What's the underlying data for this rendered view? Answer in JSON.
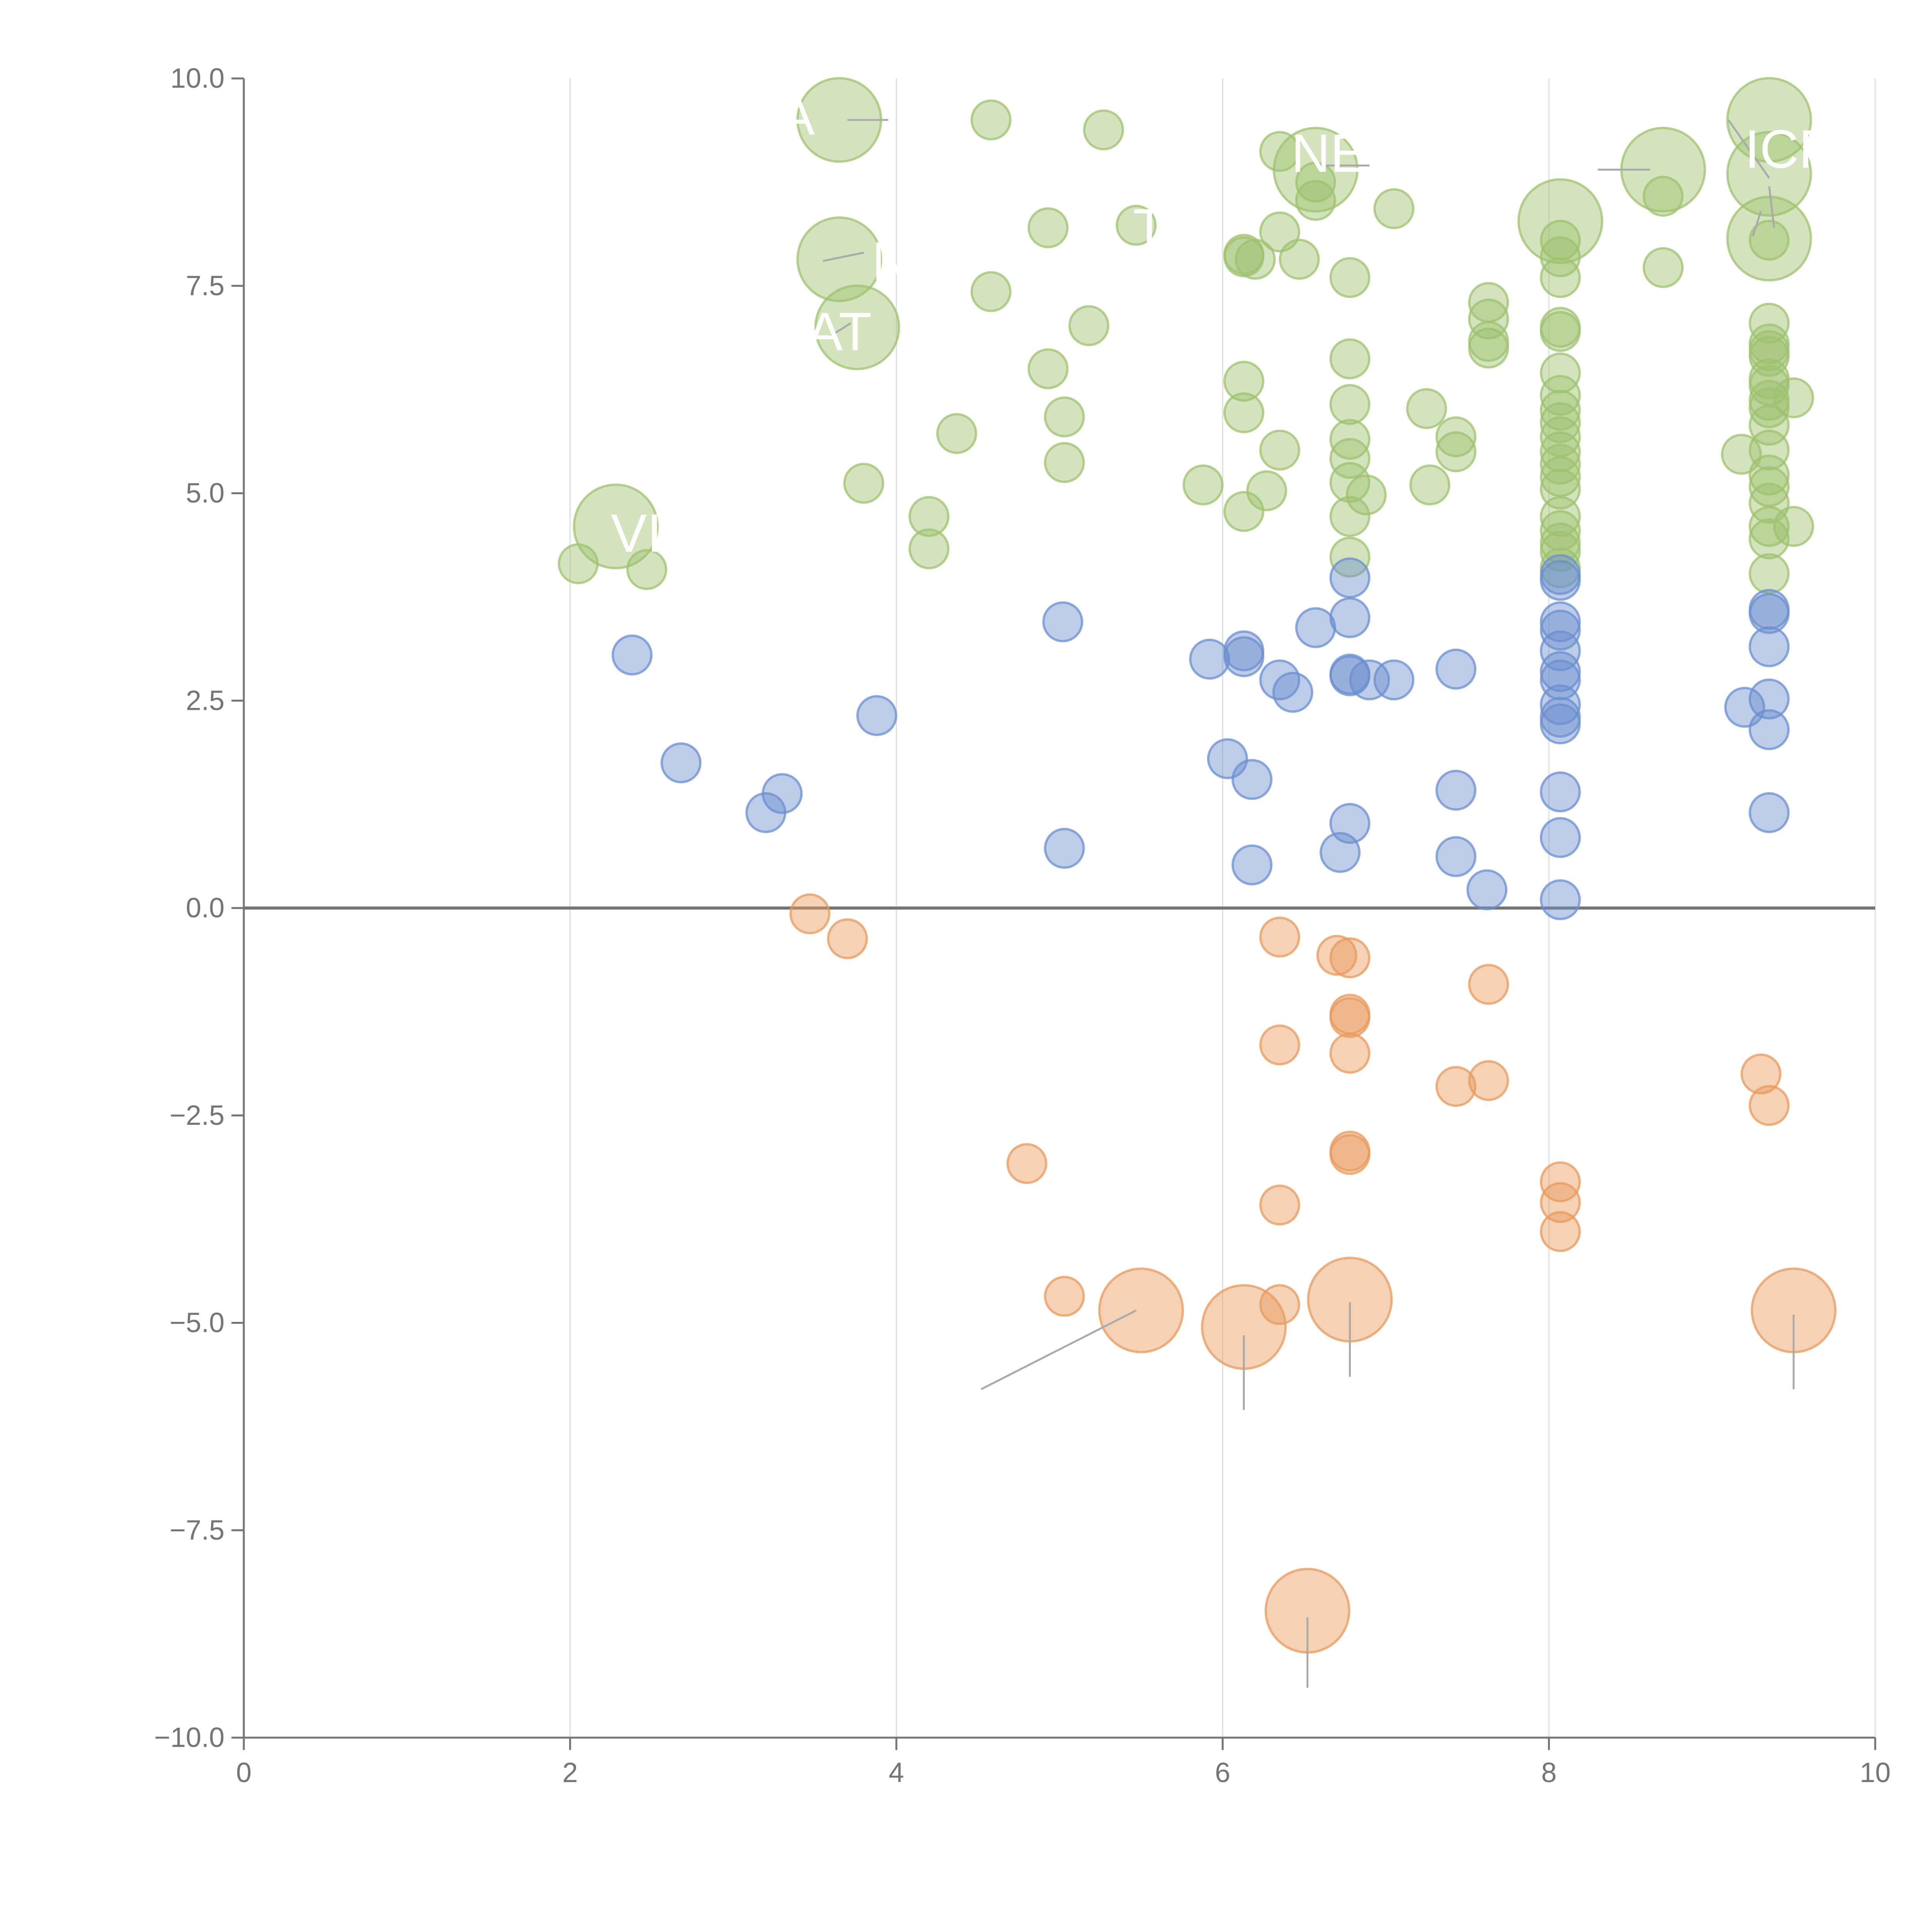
{
  "chart_data": {
    "type": "scatter",
    "title": "",
    "xlabel": "",
    "ylabel": "",
    "xlim": [
      0,
      10
    ],
    "ylim": [
      -10,
      10
    ],
    "x_ticks": [
      "0",
      "2",
      "4",
      "6",
      "8",
      "10"
    ],
    "y_ticks": [
      "10.0",
      "7.5",
      "5.0",
      "2.5",
      "0.0",
      "−2.5",
      "−5.0",
      "−7.5",
      "−10.0"
    ],
    "x_tick_values": [
      0,
      2,
      4,
      6,
      8,
      10
    ],
    "y_tick_values": [
      10,
      7.5,
      5,
      2.5,
      0,
      -2.5,
      -5,
      -7.5,
      -10
    ],
    "grid": {
      "vertical": true,
      "horizontal": false
    },
    "zero_line": 0,
    "colors": {
      "green": "#9dc26e",
      "blue": "#6b8fcf",
      "orange": "#e89a5c",
      "axis": "#757575",
      "grid": "#dddddd"
    },
    "series": [
      {
        "color": "green",
        "points": [
          [
            2.05,
            4.15,
            "s"
          ],
          [
            2.47,
            4.08,
            "s"
          ],
          [
            2.28,
            4.6,
            "l"
          ],
          [
            3.65,
            9.5,
            "l"
          ],
          [
            3.65,
            7.82,
            "l"
          ],
          [
            3.76,
            7.0,
            "l"
          ],
          [
            3.8,
            5.12,
            "s"
          ],
          [
            4.2,
            4.72,
            "s"
          ],
          [
            4.2,
            4.33,
            "s"
          ],
          [
            4.37,
            5.72,
            "s"
          ],
          [
            4.58,
            9.5,
            "s"
          ],
          [
            4.58,
            7.43,
            "s"
          ],
          [
            4.93,
            8.2,
            "s"
          ],
          [
            4.93,
            6.5,
            "s"
          ],
          [
            5.03,
            5.92,
            "s"
          ],
          [
            5.03,
            5.37,
            "s"
          ],
          [
            5.18,
            7.02,
            "s"
          ],
          [
            5.27,
            9.38,
            "s"
          ],
          [
            5.47,
            8.23,
            "s"
          ],
          [
            5.88,
            5.1,
            "s"
          ],
          [
            6.13,
            7.88,
            "s"
          ],
          [
            6.13,
            7.85,
            "s"
          ],
          [
            6.13,
            6.35,
            "s"
          ],
          [
            6.13,
            5.97,
            "s"
          ],
          [
            6.13,
            4.78,
            "s"
          ],
          [
            6.2,
            7.82,
            "s"
          ],
          [
            6.27,
            5.03,
            "s"
          ],
          [
            6.35,
            9.12,
            "s"
          ],
          [
            6.35,
            8.15,
            "s"
          ],
          [
            6.35,
            5.52,
            "s"
          ],
          [
            6.47,
            7.82,
            "s"
          ],
          [
            6.57,
            8.53,
            "s"
          ],
          [
            6.57,
            8.75,
            "s"
          ],
          [
            6.57,
            8.9,
            "l"
          ],
          [
            6.78,
            7.6,
            "s"
          ],
          [
            6.78,
            6.62,
            "s"
          ],
          [
            6.78,
            6.07,
            "s"
          ],
          [
            6.78,
            5.65,
            "s"
          ],
          [
            6.78,
            5.42,
            "s"
          ],
          [
            6.78,
            5.13,
            "s"
          ],
          [
            6.78,
            4.72,
            "s"
          ],
          [
            6.78,
            4.23,
            "s"
          ],
          [
            6.88,
            4.98,
            "s"
          ],
          [
            7.05,
            8.43,
            "s"
          ],
          [
            7.25,
            6.02,
            "s"
          ],
          [
            7.27,
            5.1,
            "s"
          ],
          [
            7.43,
            5.68,
            "s"
          ],
          [
            7.43,
            5.5,
            "s"
          ],
          [
            7.63,
            7.3,
            "s"
          ],
          [
            7.63,
            7.1,
            "s"
          ],
          [
            7.63,
            6.83,
            "s"
          ],
          [
            7.63,
            6.75,
            "s"
          ],
          [
            8.07,
            8.28,
            "l"
          ],
          [
            8.07,
            8.05,
            "s"
          ],
          [
            8.07,
            7.85,
            "s"
          ],
          [
            8.07,
            7.6,
            "s"
          ],
          [
            8.07,
            7.0,
            "s"
          ],
          [
            8.07,
            6.95,
            "s"
          ],
          [
            8.07,
            6.45,
            "s"
          ],
          [
            8.07,
            6.18,
            "s"
          ],
          [
            8.07,
            6.0,
            "s"
          ],
          [
            8.07,
            5.85,
            "s"
          ],
          [
            8.07,
            5.68,
            "s"
          ],
          [
            8.07,
            5.5,
            "s"
          ],
          [
            8.07,
            5.35,
            "s"
          ],
          [
            8.07,
            5.2,
            "s"
          ],
          [
            8.07,
            5.05,
            "s"
          ],
          [
            8.07,
            4.72,
            "s"
          ],
          [
            8.07,
            4.55,
            "s"
          ],
          [
            8.07,
            4.4,
            "s"
          ],
          [
            8.07,
            4.3,
            "s"
          ],
          [
            8.07,
            4.1,
            "s"
          ],
          [
            8.7,
            8.9,
            "l"
          ],
          [
            8.7,
            8.58,
            "s"
          ],
          [
            8.7,
            7.72,
            "s"
          ],
          [
            9.18,
            5.47,
            "s"
          ],
          [
            9.35,
            9.5,
            "l"
          ],
          [
            9.35,
            8.85,
            "l"
          ],
          [
            9.35,
            8.07,
            "l"
          ],
          [
            9.35,
            8.05,
            "s"
          ],
          [
            9.35,
            7.05,
            "s"
          ],
          [
            9.35,
            6.8,
            "s"
          ],
          [
            9.35,
            6.72,
            "s"
          ],
          [
            9.35,
            6.65,
            "s"
          ],
          [
            9.35,
            6.38,
            "s"
          ],
          [
            9.35,
            6.3,
            "s"
          ],
          [
            9.35,
            6.12,
            "s"
          ],
          [
            9.35,
            6.03,
            "s"
          ],
          [
            9.35,
            5.82,
            "s"
          ],
          [
            9.35,
            5.52,
            "s"
          ],
          [
            9.35,
            5.22,
            "s"
          ],
          [
            9.35,
            5.08,
            "s"
          ],
          [
            9.35,
            4.88,
            "s"
          ],
          [
            9.35,
            4.6,
            "s"
          ],
          [
            9.35,
            4.45,
            "s"
          ],
          [
            9.35,
            4.03,
            "s"
          ],
          [
            9.5,
            6.15,
            "s"
          ],
          [
            9.5,
            4.6,
            "s"
          ]
        ]
      },
      {
        "color": "blue",
        "points": [
          [
            2.38,
            3.05,
            "s"
          ],
          [
            2.68,
            1.75,
            "s"
          ],
          [
            3.2,
            1.15,
            "s"
          ],
          [
            3.3,
            1.38,
            "s"
          ],
          [
            3.88,
            2.32,
            "s"
          ],
          [
            5.02,
            3.45,
            "s"
          ],
          [
            5.03,
            0.72,
            "s"
          ],
          [
            5.92,
            3.0,
            "s"
          ],
          [
            6.03,
            1.8,
            "s"
          ],
          [
            6.13,
            3.1,
            "s"
          ],
          [
            6.13,
            3.03,
            "s"
          ],
          [
            6.18,
            1.55,
            "s"
          ],
          [
            6.18,
            0.52,
            "s"
          ],
          [
            6.35,
            2.75,
            "s"
          ],
          [
            6.43,
            2.6,
            "s"
          ],
          [
            6.57,
            3.38,
            "s"
          ],
          [
            6.72,
            0.67,
            "s"
          ],
          [
            6.78,
            3.98,
            "s"
          ],
          [
            6.78,
            3.5,
            "s"
          ],
          [
            6.78,
            2.82,
            "s"
          ],
          [
            6.78,
            2.8,
            "s"
          ],
          [
            6.78,
            1.02,
            "s"
          ],
          [
            6.9,
            2.75,
            "s"
          ],
          [
            7.05,
            2.75,
            "s"
          ],
          [
            7.43,
            2.88,
            "s"
          ],
          [
            7.43,
            1.42,
            "s"
          ],
          [
            7.43,
            0.62,
            "s"
          ],
          [
            7.62,
            0.22,
            "s"
          ],
          [
            8.07,
            4.02,
            "s"
          ],
          [
            8.07,
            3.95,
            "s"
          ],
          [
            8.07,
            3.45,
            "s"
          ],
          [
            8.07,
            3.35,
            "s"
          ],
          [
            8.07,
            3.1,
            "s"
          ],
          [
            8.07,
            2.85,
            "s"
          ],
          [
            8.07,
            2.75,
            "s"
          ],
          [
            8.07,
            2.45,
            "s"
          ],
          [
            8.07,
            2.3,
            "s"
          ],
          [
            8.07,
            2.22,
            "s"
          ],
          [
            8.07,
            1.4,
            "s"
          ],
          [
            8.07,
            0.85,
            "s"
          ],
          [
            8.07,
            0.1,
            "s"
          ],
          [
            9.35,
            3.6,
            "s"
          ],
          [
            9.35,
            3.55,
            "s"
          ],
          [
            9.35,
            3.15,
            "s"
          ],
          [
            9.35,
            2.52,
            "s"
          ],
          [
            9.35,
            2.15,
            "s"
          ],
          [
            9.35,
            1.15,
            "s"
          ],
          [
            9.2,
            2.42,
            "s"
          ]
        ]
      },
      {
        "color": "orange",
        "points": [
          [
            3.47,
            -0.07,
            "s"
          ],
          [
            3.7,
            -0.37,
            "s"
          ],
          [
            4.8,
            -3.08,
            "s"
          ],
          [
            5.03,
            -4.68,
            "s"
          ],
          [
            5.5,
            -4.85,
            "l"
          ],
          [
            6.13,
            -5.05,
            "l"
          ],
          [
            6.35,
            -0.35,
            "s"
          ],
          [
            6.35,
            -1.65,
            "s"
          ],
          [
            6.35,
            -3.58,
            "s"
          ],
          [
            6.35,
            -4.78,
            "s"
          ],
          [
            6.52,
            -8.47,
            "l"
          ],
          [
            6.7,
            -0.57,
            "s"
          ],
          [
            6.78,
            -0.6,
            "s"
          ],
          [
            6.78,
            -1.28,
            "s"
          ],
          [
            6.78,
            -1.32,
            "s"
          ],
          [
            6.78,
            -1.75,
            "s"
          ],
          [
            6.78,
            -2.93,
            "s"
          ],
          [
            6.78,
            -2.97,
            "s"
          ],
          [
            6.78,
            -4.72,
            "l"
          ],
          [
            7.43,
            -2.15,
            "s"
          ],
          [
            7.63,
            -0.92,
            "s"
          ],
          [
            7.63,
            -2.08,
            "s"
          ],
          [
            8.07,
            -3.3,
            "s"
          ],
          [
            8.07,
            -3.55,
            "s"
          ],
          [
            8.07,
            -3.9,
            "s"
          ],
          [
            9.3,
            -2.0,
            "s"
          ],
          [
            9.35,
            -2.38,
            "s"
          ],
          [
            9.5,
            -4.85,
            "l"
          ]
        ]
      }
    ],
    "annotations": [
      {
        "text": "A",
        "x": 3.5,
        "y": 9.55,
        "anchor": "end"
      },
      {
        "text": "N",
        "x": 3.85,
        "y": 7.8,
        "anchor": "start"
      },
      {
        "text": "AT",
        "x": 3.45,
        "y": 6.95,
        "anchor": "start"
      },
      {
        "text": "VI",
        "x": 2.25,
        "y": 4.52,
        "anchor": "start"
      },
      {
        "text": "T",
        "x": 5.45,
        "y": 8.2,
        "anchor": "start"
      },
      {
        "text": "NE",
        "x": 6.42,
        "y": 9.1,
        "anchor": "start"
      },
      {
        "text": "ICP",
        "x": 9.2,
        "y": 9.15,
        "anchor": "start"
      }
    ],
    "leader_lines": [
      [
        [
          3.7,
          9.5
        ],
        [
          3.95,
          9.5
        ]
      ],
      [
        [
          3.55,
          7.8
        ],
        [
          3.8,
          7.9
        ]
      ],
      [
        [
          3.6,
          6.9
        ],
        [
          3.72,
          7.05
        ]
      ],
      [
        [
          6.6,
          8.95
        ],
        [
          6.9,
          8.95
        ]
      ],
      [
        [
          8.3,
          8.9
        ],
        [
          8.62,
          8.9
        ]
      ],
      [
        [
          9.35,
          8.8
        ],
        [
          9.1,
          9.5
        ]
      ],
      [
        [
          9.35,
          8.7
        ],
        [
          9.38,
          8.2
        ]
      ],
      [
        [
          9.3,
          8.4
        ],
        [
          9.25,
          8.1
        ]
      ],
      [
        [
          5.47,
          -4.85
        ],
        [
          4.52,
          -5.8
        ]
      ],
      [
        [
          6.13,
          -5.15
        ],
        [
          6.13,
          -6.05
        ]
      ],
      [
        [
          6.78,
          -4.75
        ],
        [
          6.78,
          -5.65
        ]
      ],
      [
        [
          6.52,
          -8.55
        ],
        [
          6.52,
          -9.4
        ]
      ],
      [
        [
          9.5,
          -4.9
        ],
        [
          9.5,
          -5.8
        ]
      ]
    ]
  }
}
